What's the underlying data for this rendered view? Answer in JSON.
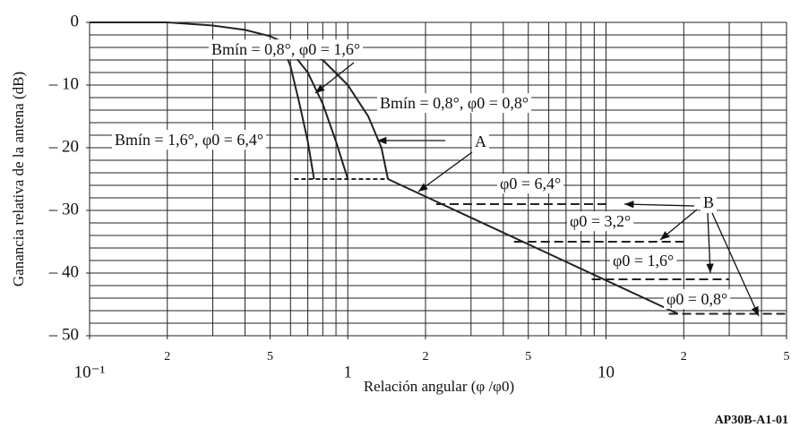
{
  "chart_data": {
    "type": "line",
    "x_label": "Relación angular (φ /φ0)",
    "y_label": "Ganancia relativa de la antena (dB)",
    "figure_code": "AP30B-A1-01",
    "log_x": true,
    "xlim": [
      0.1,
      50
    ],
    "ylim": [
      -50,
      0
    ],
    "xticks": [
      {
        "value": 0.1,
        "label": "10⁻¹"
      },
      {
        "value": 0.2,
        "label": "2"
      },
      {
        "value": 0.5,
        "label": "5"
      },
      1,
      {
        "value": 2,
        "label": "2"
      },
      {
        "value": 5,
        "label": "5"
      },
      10,
      {
        "value": 20,
        "label": "2"
      },
      {
        "value": 50,
        "label": "5"
      }
    ],
    "yticks": [
      0,
      {
        "value": -10,
        "label": "– 10"
      },
      {
        "value": -20,
        "label": "– 20"
      },
      {
        "value": -30,
        "label": "– 30"
      },
      {
        "value": -40,
        "label": "– 40"
      },
      {
        "value": -50,
        "label": "– 50"
      }
    ],
    "x_grid": [
      0.1,
      0.2,
      0.3,
      0.4,
      0.5,
      0.6,
      0.7,
      0.8,
      0.9,
      1,
      2,
      3,
      4,
      5,
      6,
      7,
      8,
      9,
      10,
      20,
      30,
      40,
      50
    ],
    "y_grid": [
      0,
      -2,
      -4,
      -6,
      -8,
      -10,
      -12,
      -14,
      -16,
      -18,
      -20,
      -22,
      -24,
      -26,
      -28,
      -30,
      -32,
      -34,
      -36,
      -38,
      -40,
      -42,
      -44,
      -46,
      -48,
      -50
    ],
    "grid": true,
    "series": [
      {
        "color": "#222222",
        "style": "solid",
        "x": [
          0.1,
          0.2,
          0.3,
          0.4,
          0.5,
          0.55
        ],
        "values": [
          0,
          0,
          -0.5,
          -1.2,
          -2.2,
          -3
        ]
      },
      {
        "color": "#222222",
        "style": "solid",
        "x": [
          0.55,
          0.6,
          0.65,
          0.7,
          0.74
        ],
        "values": [
          -3,
          -7,
          -13,
          -19,
          -25
        ]
      },
      {
        "color": "#222222",
        "style": "solid",
        "x": [
          0.55,
          0.6,
          0.7,
          0.8,
          0.9,
          1.0
        ],
        "values": [
          -3,
          -4.5,
          -8,
          -13,
          -19,
          -25
        ]
      },
      {
        "color": "#222222",
        "style": "solid",
        "x": [
          0.55,
          0.6,
          0.8,
          1.0,
          1.2,
          1.35,
          1.43
        ],
        "values": [
          -3,
          -3.5,
          -6,
          -10,
          -15,
          -20,
          -25
        ]
      },
      {
        "color": "#222222",
        "style": "dashed",
        "x": [
          0.62,
          1.43
        ],
        "values": [
          -25,
          -25
        ]
      },
      {
        "color": "#222222",
        "style": "solid",
        "x": [
          1.43,
          19
        ],
        "values": [
          -25,
          -46.5
        ]
      },
      {
        "color": "#222222",
        "style": "thick-dashed",
        "x": [
          2.2,
          10
        ],
        "values": [
          -29,
          -29
        ]
      },
      {
        "color": "#222222",
        "style": "thick-dashed",
        "x": [
          4.4,
          20
        ],
        "values": [
          -35,
          -35
        ]
      },
      {
        "color": "#222222",
        "style": "thick-dashed",
        "x": [
          8.8,
          30
        ],
        "values": [
          -41,
          -41
        ]
      },
      {
        "color": "#222222",
        "style": "thick-dashed",
        "x": [
          17.5,
          50
        ],
        "values": [
          -46.5,
          -46.5
        ]
      }
    ],
    "annotations": [
      "Bmín = 0,8°, φ0 = 1,6°",
      "Bmín = 0,8°, φ0 = 0,8°",
      "Bmín = 1,6°, φ0 = 6,4°",
      "A",
      "φ0 = 6,4°",
      "φ0 = 3,2°",
      "φ0 = 1,6°",
      "φ0 = 0,8°",
      "B"
    ]
  }
}
